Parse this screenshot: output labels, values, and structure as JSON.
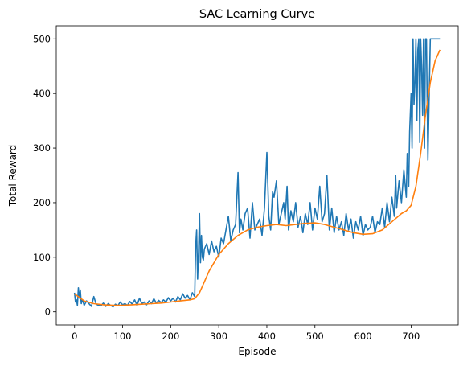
{
  "chart_data": {
    "type": "line",
    "title": "SAC Learning Curve",
    "xlabel": "Episode",
    "ylabel": "Total Reward",
    "xlim": [
      -38,
      798
    ],
    "ylim": [
      -24,
      524
    ],
    "xticks": [
      0,
      100,
      200,
      300,
      400,
      500,
      600,
      700
    ],
    "yticks": [
      0,
      100,
      200,
      300,
      400,
      500
    ],
    "grid": false,
    "legend": "none",
    "series": [
      {
        "color": "#1f77b4",
        "x": [
          0,
          2,
          4,
          6,
          8,
          10,
          12,
          14,
          16,
          18,
          20,
          25,
          30,
          35,
          40,
          45,
          50,
          55,
          60,
          65,
          70,
          75,
          80,
          85,
          90,
          95,
          100,
          105,
          110,
          115,
          120,
          125,
          130,
          135,
          140,
          145,
          150,
          155,
          160,
          165,
          170,
          175,
          180,
          185,
          190,
          195,
          200,
          205,
          210,
          215,
          220,
          225,
          230,
          235,
          240,
          245,
          250,
          252,
          254,
          256,
          258,
          260,
          262,
          264,
          266,
          268,
          270,
          275,
          280,
          285,
          290,
          295,
          300,
          305,
          310,
          315,
          320,
          325,
          330,
          335,
          340,
          343,
          346,
          350,
          355,
          360,
          365,
          370,
          375,
          380,
          385,
          390,
          395,
          400,
          404,
          408,
          412,
          415,
          420,
          425,
          430,
          435,
          438,
          442,
          445,
          450,
          455,
          460,
          465,
          470,
          475,
          480,
          485,
          490,
          495,
          500,
          505,
          510,
          515,
          520,
          525,
          530,
          535,
          540,
          545,
          550,
          555,
          560,
          565,
          570,
          575,
          580,
          585,
          590,
          595,
          600,
          605,
          610,
          615,
          620,
          625,
          630,
          635,
          640,
          645,
          650,
          655,
          660,
          665,
          668,
          670,
          675,
          680,
          685,
          690,
          692,
          695,
          697,
          700,
          702,
          704,
          706,
          708,
          710,
          712,
          714,
          716,
          718,
          720,
          722,
          724,
          726,
          728,
          730,
          732,
          735,
          740,
          745,
          750,
          755,
          760
        ],
        "y": [
          35,
          18,
          22,
          12,
          44,
          25,
          40,
          15,
          22,
          18,
          12,
          20,
          15,
          10,
          28,
          14,
          12,
          11,
          16,
          10,
          15,
          12,
          9,
          14,
          11,
          18,
          13,
          15,
          12,
          19,
          14,
          22,
          12,
          25,
          15,
          18,
          13,
          20,
          15,
          24,
          16,
          21,
          17,
          22,
          18,
          26,
          20,
          25,
          18,
          28,
          22,
          33,
          25,
          30,
          22,
          35,
          28,
          120,
          150,
          60,
          110,
          180,
          90,
          140,
          100,
          95,
          115,
          125,
          105,
          130,
          110,
          120,
          100,
          135,
          125,
          150,
          175,
          130,
          150,
          160,
          255,
          145,
          170,
          150,
          180,
          190,
          135,
          200,
          150,
          160,
          170,
          140,
          190,
          292,
          175,
          150,
          220,
          210,
          240,
          160,
          180,
          200,
          170,
          230,
          150,
          185,
          165,
          200,
          155,
          175,
          145,
          180,
          160,
          200,
          150,
          190,
          170,
          230,
          165,
          180,
          250,
          150,
          190,
          145,
          175,
          150,
          165,
          140,
          180,
          150,
          170,
          135,
          165,
          150,
          175,
          140,
          160,
          150,
          155,
          175,
          145,
          165,
          160,
          190,
          155,
          200,
          165,
          210,
          175,
          250,
          190,
          240,
          200,
          260,
          210,
          290,
          230,
          330,
          400,
          300,
          500,
          380,
          420,
          500,
          350,
          480,
          500,
          310,
          500,
          450,
          360,
          500,
          300,
          500,
          500,
          278,
          500,
          500,
          500,
          500,
          500
        ]
      },
      {
        "color": "#ff7f0e",
        "x": [
          0,
          20,
          40,
          60,
          80,
          100,
          120,
          140,
          160,
          180,
          200,
          220,
          240,
          250,
          260,
          270,
          280,
          290,
          300,
          320,
          340,
          360,
          380,
          400,
          420,
          440,
          460,
          480,
          500,
          520,
          540,
          560,
          580,
          600,
          620,
          640,
          660,
          680,
          690,
          700,
          710,
          720,
          730,
          740,
          750,
          755,
          760
        ],
        "y": [
          33,
          20,
          15,
          13,
          12,
          12,
          13,
          14,
          15,
          16,
          18,
          20,
          22,
          24,
          35,
          55,
          75,
          90,
          105,
          125,
          140,
          150,
          155,
          158,
          160,
          158,
          160,
          162,
          163,
          160,
          155,
          150,
          145,
          142,
          143,
          150,
          165,
          180,
          185,
          195,
          230,
          290,
          360,
          420,
          460,
          470,
          480
        ]
      }
    ]
  }
}
